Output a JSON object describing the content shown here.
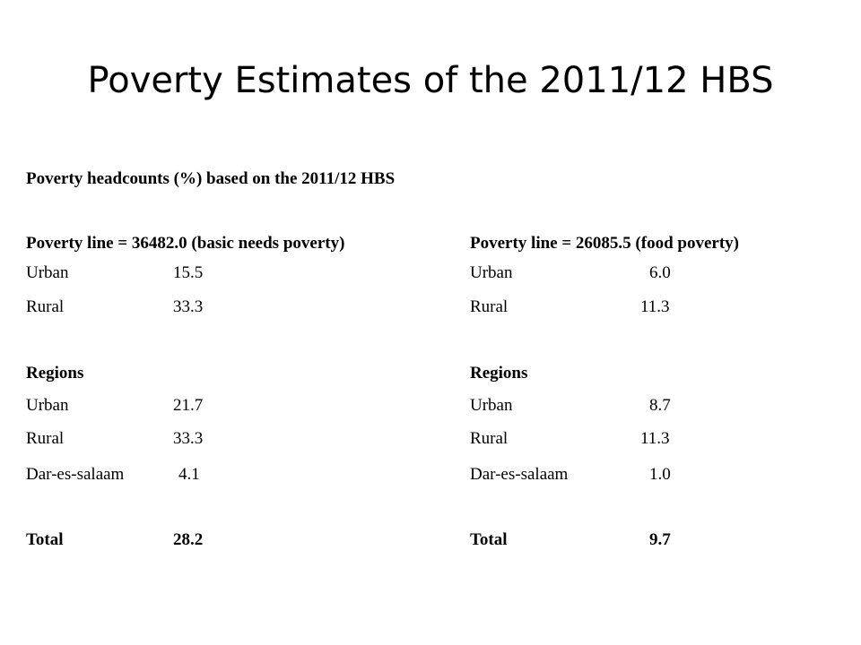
{
  "slide": {
    "title": "Poverty Estimates of the 2011/12 HBS",
    "subtitle": "Poverty headcounts (%) based on the 2011/12 HBS"
  },
  "left": {
    "header": "Poverty line = 36482.0 (basic needs poverty)",
    "rows": [
      {
        "label": "Urban",
        "value": "15.5"
      },
      {
        "label": "Rural",
        "value": "33.3"
      }
    ],
    "regions_label": "Regions",
    "region_rows": [
      {
        "label": "Urban",
        "value": "21.7"
      },
      {
        "label": "Rural",
        "value": "33.3"
      },
      {
        "label": "Dar-es-salaam",
        "value": "4.1"
      }
    ],
    "total": {
      "label": "Total",
      "value": "28.2"
    }
  },
  "right": {
    "header": "Poverty line = 26085.5 (food poverty)",
    "rows": [
      {
        "label": "Urban",
        "value": "6.0"
      },
      {
        "label": "Rural",
        "value": "11.3"
      }
    ],
    "regions_label": "Regions",
    "region_rows": [
      {
        "label": "Urban",
        "value": "8.7"
      },
      {
        "label": "Rural",
        "value": "11.3"
      },
      {
        "label": "Dar-es-salaam",
        "value": "1.0"
      }
    ],
    "total": {
      "label": "Total",
      "value": "9.7"
    }
  }
}
